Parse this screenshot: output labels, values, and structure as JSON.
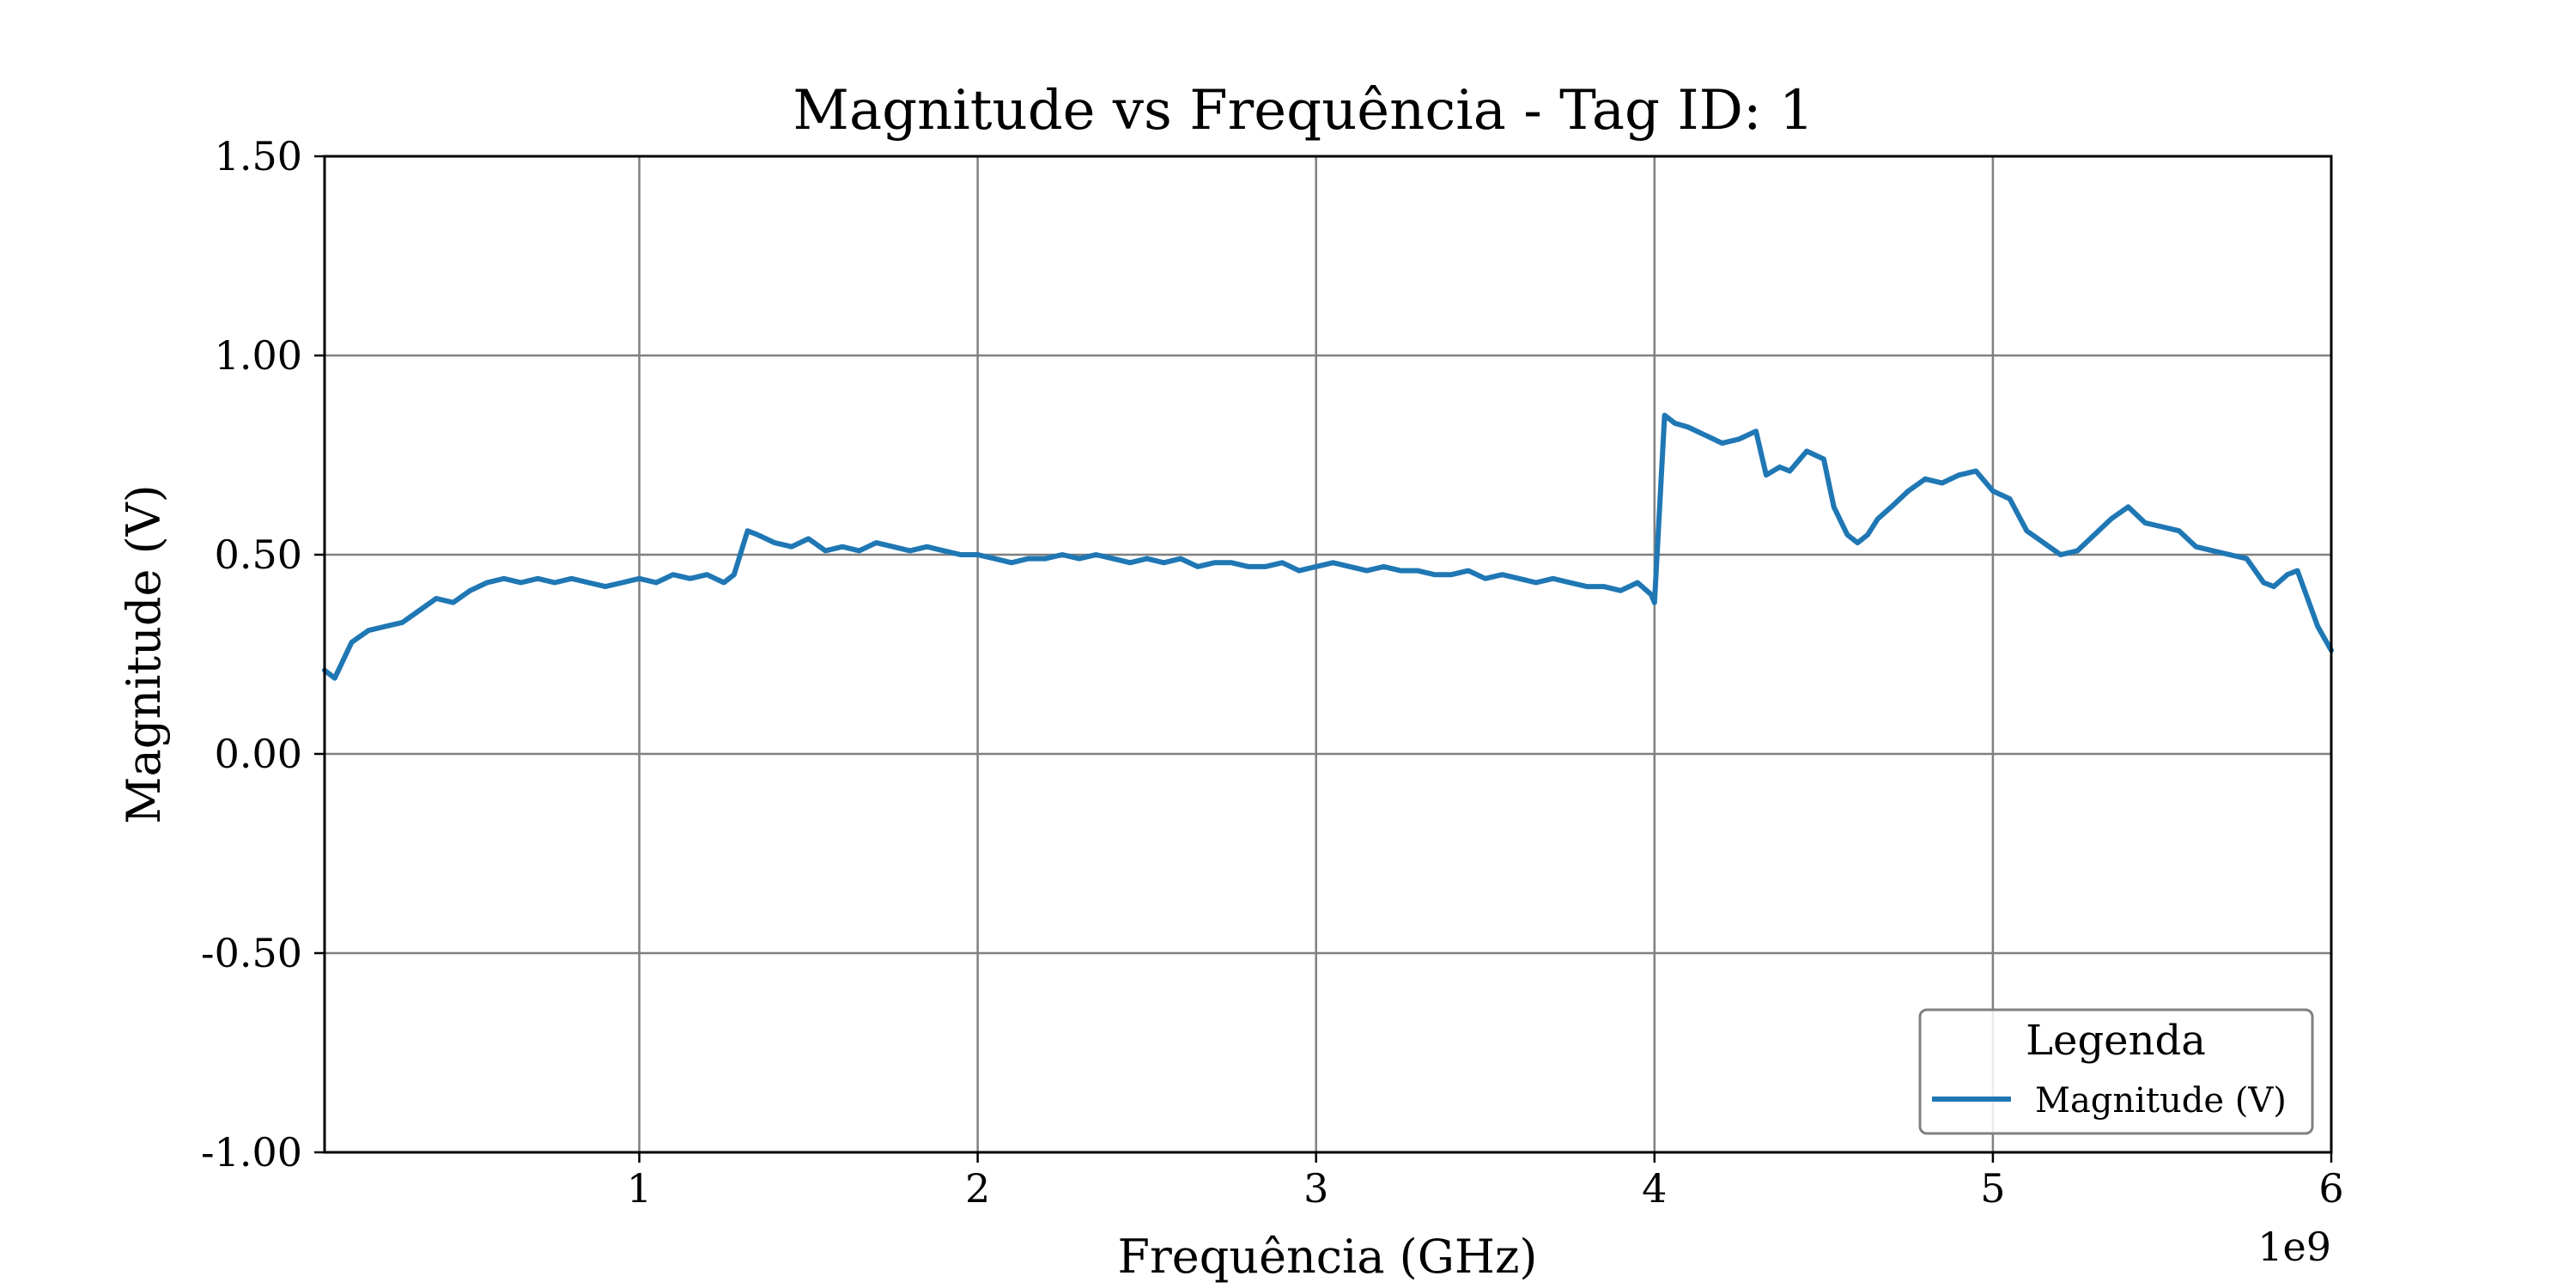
{
  "chart_data": {
    "type": "line",
    "title": "Magnitude vs Frequência - Tag ID: 1",
    "xlabel": "Frequência (GHz)",
    "ylabel": "Magnitude (V)",
    "x_offset_text": "1e9",
    "xlim": [
      0.07,
      6.0
    ],
    "ylim": [
      -1.0,
      1.5
    ],
    "x_ticks": [
      1,
      2,
      3,
      4,
      5,
      6
    ],
    "x_tick_labels": [
      "1",
      "2",
      "3",
      "4",
      "5",
      "6"
    ],
    "y_ticks": [
      -1.0,
      -0.5,
      0.0,
      0.5,
      1.0,
      1.5
    ],
    "y_tick_labels": [
      "-1.00",
      "-0.50",
      "0.00",
      "0.50",
      "1.00",
      "1.50"
    ],
    "grid": true,
    "legend": {
      "title": "Legenda",
      "placement": "lower-right",
      "entries": [
        "Magnitude (V)"
      ]
    },
    "series": [
      {
        "name": "Magnitude (V)",
        "color": "#1f77b4",
        "x": [
          0.07,
          0.1,
          0.15,
          0.2,
          0.25,
          0.3,
          0.35,
          0.4,
          0.45,
          0.5,
          0.55,
          0.6,
          0.65,
          0.7,
          0.75,
          0.8,
          0.85,
          0.9,
          0.95,
          1.0,
          1.05,
          1.1,
          1.15,
          1.2,
          1.25,
          1.28,
          1.32,
          1.35,
          1.4,
          1.45,
          1.5,
          1.55,
          1.6,
          1.65,
          1.7,
          1.75,
          1.8,
          1.85,
          1.9,
          1.95,
          2.0,
          2.05,
          2.1,
          2.15,
          2.2,
          2.25,
          2.3,
          2.35,
          2.4,
          2.45,
          2.5,
          2.55,
          2.6,
          2.65,
          2.7,
          2.75,
          2.8,
          2.85,
          2.9,
          2.95,
          3.0,
          3.05,
          3.1,
          3.15,
          3.2,
          3.25,
          3.3,
          3.35,
          3.4,
          3.45,
          3.5,
          3.55,
          3.6,
          3.65,
          3.7,
          3.75,
          3.8,
          3.85,
          3.9,
          3.95,
          3.99,
          4.0,
          4.03,
          4.06,
          4.1,
          4.15,
          4.2,
          4.25,
          4.3,
          4.33,
          4.37,
          4.4,
          4.45,
          4.5,
          4.53,
          4.57,
          4.6,
          4.63,
          4.66,
          4.7,
          4.75,
          4.8,
          4.85,
          4.9,
          4.95,
          5.0,
          5.05,
          5.1,
          5.15,
          5.2,
          5.25,
          5.3,
          5.35,
          5.4,
          5.45,
          5.5,
          5.55,
          5.6,
          5.65,
          5.7,
          5.75,
          5.8,
          5.83,
          5.87,
          5.9,
          5.93,
          5.96,
          6.0
        ],
        "values": [
          0.21,
          0.19,
          0.28,
          0.31,
          0.32,
          0.33,
          0.36,
          0.39,
          0.38,
          0.41,
          0.43,
          0.44,
          0.43,
          0.44,
          0.43,
          0.44,
          0.43,
          0.42,
          0.43,
          0.44,
          0.43,
          0.45,
          0.44,
          0.45,
          0.43,
          0.45,
          0.56,
          0.55,
          0.53,
          0.52,
          0.54,
          0.51,
          0.52,
          0.51,
          0.53,
          0.52,
          0.51,
          0.52,
          0.51,
          0.5,
          0.5,
          0.49,
          0.48,
          0.49,
          0.49,
          0.5,
          0.49,
          0.5,
          0.49,
          0.48,
          0.49,
          0.48,
          0.49,
          0.47,
          0.48,
          0.48,
          0.47,
          0.47,
          0.48,
          0.46,
          0.47,
          0.48,
          0.47,
          0.46,
          0.47,
          0.46,
          0.46,
          0.45,
          0.45,
          0.46,
          0.44,
          0.45,
          0.44,
          0.43,
          0.44,
          0.43,
          0.42,
          0.42,
          0.41,
          0.43,
          0.4,
          0.38,
          0.85,
          0.83,
          0.82,
          0.8,
          0.78,
          0.79,
          0.81,
          0.7,
          0.72,
          0.71,
          0.76,
          0.74,
          0.62,
          0.55,
          0.53,
          0.55,
          0.59,
          0.62,
          0.66,
          0.69,
          0.68,
          0.7,
          0.71,
          0.66,
          0.64,
          0.56,
          0.53,
          0.5,
          0.51,
          0.55,
          0.59,
          0.62,
          0.58,
          0.57,
          0.56,
          0.52,
          0.51,
          0.5,
          0.49,
          0.43,
          0.42,
          0.45,
          0.46,
          0.39,
          0.32,
          0.26
        ]
      }
    ]
  }
}
